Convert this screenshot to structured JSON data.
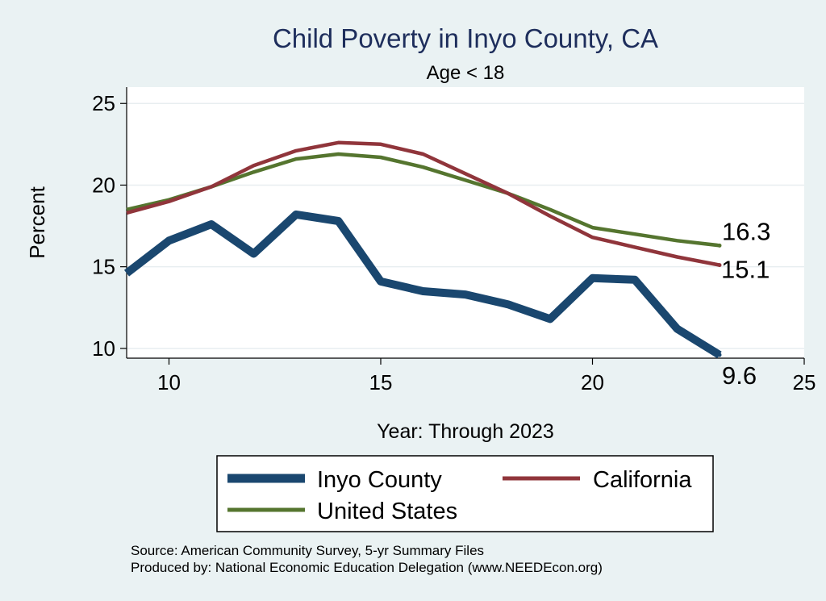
{
  "chart_data": {
    "type": "line",
    "title": "Child Poverty in Inyo County, CA",
    "subtitle": "Age < 18",
    "xlabel": "Year: Through 2023",
    "ylabel": "Percent",
    "xlim": [
      9,
      25
    ],
    "ylim": [
      9.4,
      26
    ],
    "xticks": [
      10,
      15,
      20,
      25
    ],
    "yticks": [
      10,
      15,
      20,
      25
    ],
    "grid": true,
    "legend_position": "bottom",
    "series": [
      {
        "name": "Inyo County",
        "color": "#1a476f",
        "weight": "thick",
        "x": [
          9,
          10,
          11,
          12,
          13,
          14,
          15,
          16,
          17,
          18,
          19,
          20,
          21,
          22,
          23
        ],
        "values": [
          14.6,
          16.6,
          17.6,
          15.8,
          18.2,
          17.8,
          14.1,
          13.5,
          13.3,
          12.7,
          11.8,
          14.3,
          14.2,
          11.2,
          9.6
        ],
        "end_label": "9.6"
      },
      {
        "name": "California",
        "color": "#90353b",
        "weight": "normal",
        "x": [
          9,
          10,
          11,
          12,
          13,
          14,
          15,
          16,
          17,
          18,
          19,
          20,
          21,
          22,
          23
        ],
        "values": [
          18.3,
          19.0,
          19.9,
          21.2,
          22.1,
          22.6,
          22.5,
          21.9,
          20.7,
          19.5,
          18.1,
          16.8,
          16.2,
          15.6,
          15.1
        ],
        "end_label": "15.1"
      },
      {
        "name": "United States",
        "color": "#55752f",
        "weight": "normal",
        "x": [
          9,
          10,
          11,
          12,
          13,
          14,
          15,
          16,
          17,
          18,
          19,
          20,
          21,
          22,
          23
        ],
        "values": [
          18.5,
          19.1,
          19.9,
          20.8,
          21.6,
          21.9,
          21.7,
          21.1,
          20.3,
          19.5,
          18.5,
          17.4,
          17.0,
          16.6,
          16.3
        ],
        "end_label": "16.3"
      }
    ],
    "notes": [
      "Source: American Community Survey, 5-yr Summary Files",
      "Produced by: National Economic Education Delegation (www.NEEDEcon.org)"
    ]
  }
}
